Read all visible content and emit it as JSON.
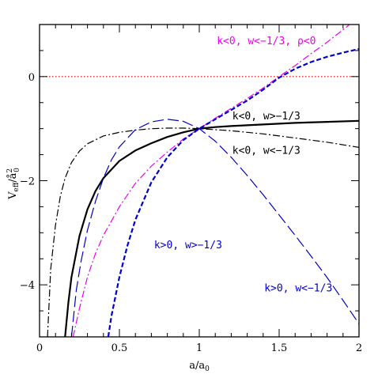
{
  "chart_data": {
    "type": "line",
    "xlabel": "a/a",
    "xlabel_sub": "0",
    "ylabel": "V",
    "ylabel_sub": "eff",
    "ylabel_mid": "/å",
    "ylabel_sup": "2",
    "ylabel_sub2": "0",
    "xlim": [
      0,
      2
    ],
    "ylim": [
      -5,
      1
    ],
    "x_ticks": [
      0,
      0.5,
      1,
      1.5,
      2
    ],
    "x_tick_labels": [
      "0",
      "0.5",
      "1",
      "1.5",
      "2"
    ],
    "y_ticks": [
      -4,
      -2,
      0
    ],
    "y_tick_labels": [
      "−4",
      "−2",
      "0"
    ],
    "grid": false,
    "zero_line": {
      "y": 0,
      "color": "#dd0000",
      "style": "dotted"
    },
    "series": [
      {
        "name": "k<0, w>−1/3",
        "color": "#000000",
        "dash": "solid",
        "x": [
          0.16,
          0.18,
          0.2,
          0.25,
          0.3,
          0.35,
          0.4,
          0.5,
          0.6,
          0.7,
          0.8,
          0.9,
          1.0,
          1.1,
          1.2,
          1.4,
          1.6,
          1.8,
          2.0
        ],
        "y": [
          -5.0,
          -4.35,
          -3.85,
          -3.06,
          -2.55,
          -2.2,
          -1.95,
          -1.62,
          -1.42,
          -1.28,
          -1.16,
          -1.07,
          -1.0,
          -0.97,
          -0.95,
          -0.92,
          -0.89,
          -0.87,
          -0.85
        ]
      },
      {
        "name": "k<0, w<−1/3",
        "color": "#000000",
        "dash": "dashdot",
        "x": [
          0.05,
          0.07,
          0.1,
          0.13,
          0.16,
          0.2,
          0.25,
          0.3,
          0.4,
          0.5,
          0.6,
          0.7,
          0.8,
          0.9,
          1.0,
          1.2,
          1.4,
          1.6,
          1.8,
          2.0
        ],
        "y": [
          -5.0,
          -3.7,
          -2.85,
          -2.3,
          -1.95,
          -1.65,
          -1.43,
          -1.29,
          -1.14,
          -1.07,
          -1.03,
          -1.0,
          -0.99,
          -0.99,
          -1.0,
          -1.04,
          -1.1,
          -1.18,
          -1.26,
          -1.36
        ]
      },
      {
        "name": "k<0, w<−1/3, ρ<0",
        "color": "#ee00ee",
        "dash": "dashdot",
        "x": [
          0.21,
          0.25,
          0.3,
          0.35,
          0.4,
          0.5,
          0.6,
          0.7,
          0.8,
          0.9,
          1.0,
          1.1,
          1.2,
          1.3,
          1.4,
          1.5,
          1.6,
          1.7,
          1.8,
          1.9,
          2.0
        ],
        "y": [
          -5.0,
          -4.45,
          -3.85,
          -3.4,
          -3.05,
          -2.5,
          -2.05,
          -1.72,
          -1.45,
          -1.2,
          -1.0,
          -0.8,
          -0.61,
          -0.42,
          -0.22,
          0.0,
          0.21,
          0.44,
          0.66,
          0.9,
          1.15
        ]
      },
      {
        "name": "k>0, w>−1/3",
        "color": "#0000cc",
        "dash": "shortdash",
        "x": [
          0.43,
          0.45,
          0.5,
          0.55,
          0.6,
          0.7,
          0.8,
          0.9,
          1.0,
          1.1,
          1.2,
          1.3,
          1.4,
          1.5,
          1.6,
          1.7,
          1.8,
          1.9,
          2.0
        ],
        "y": [
          -5.0,
          -4.6,
          -3.85,
          -3.25,
          -2.75,
          -2.03,
          -1.55,
          -1.22,
          -1.0,
          -0.82,
          -0.64,
          -0.46,
          -0.25,
          -0.02,
          0.15,
          0.28,
          0.38,
          0.46,
          0.53
        ]
      },
      {
        "name": "k>0, w<−1/3",
        "color": "#0000cc",
        "dash": "longdash",
        "x": [
          0.2,
          0.23,
          0.26,
          0.3,
          0.35,
          0.4,
          0.45,
          0.5,
          0.6,
          0.7,
          0.8,
          0.9,
          1.0,
          1.1,
          1.2,
          1.3,
          1.4,
          1.5,
          1.6,
          1.7,
          1.8,
          1.9,
          2.0
        ],
        "y": [
          -5.0,
          -4.1,
          -3.55,
          -2.95,
          -2.4,
          -1.95,
          -1.6,
          -1.35,
          -1.02,
          -0.87,
          -0.82,
          -0.86,
          -1.0,
          -1.24,
          -1.55,
          -1.9,
          -2.27,
          -2.66,
          -3.05,
          -3.45,
          -3.86,
          -4.3,
          -4.75
        ]
      }
    ],
    "annotations": [
      {
        "text": "k<0, w<−1/3, ρ<0",
        "color": "#ee00ee",
        "x": 1.42,
        "y": 0.62
      },
      {
        "text": "k<0, w>−1/3",
        "color": "#000000",
        "x": 1.42,
        "y": -0.82
      },
      {
        "text": "k<0, w<−1/3",
        "color": "#000000",
        "x": 1.42,
        "y": -1.48
      },
      {
        "text": "k>0, w>−1/3",
        "color": "#0000cc",
        "x": 0.93,
        "y": -3.3
      },
      {
        "text": "k>0, w<−1/3",
        "color": "#0000cc",
        "x": 1.62,
        "y": -4.13
      }
    ]
  }
}
